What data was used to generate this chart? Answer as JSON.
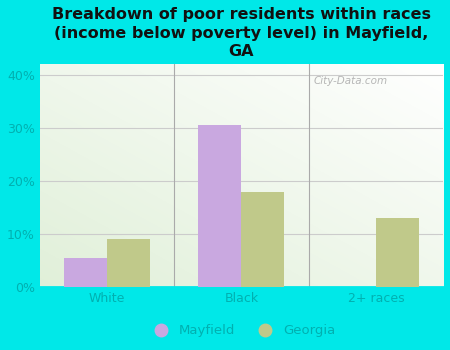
{
  "title": "Breakdown of poor residents within races\n(income below poverty level) in Mayfield,\nGA",
  "categories": [
    "White",
    "Black",
    "2+ races"
  ],
  "mayfield_values": [
    5.5,
    30.5,
    0
  ],
  "georgia_values": [
    9.0,
    18.0,
    13.0
  ],
  "mayfield_color": "#c9a8e0",
  "georgia_color": "#c0c98a",
  "background_color": "#00e8e8",
  "ylim": [
    0,
    42
  ],
  "yticks": [
    0,
    10,
    20,
    30,
    40
  ],
  "bar_width": 0.32,
  "title_fontsize": 11.5,
  "tick_fontsize": 9,
  "legend_fontsize": 9.5,
  "title_color": "#111111",
  "tick_color": "#00b0b0",
  "watermark": "City-Data.com"
}
